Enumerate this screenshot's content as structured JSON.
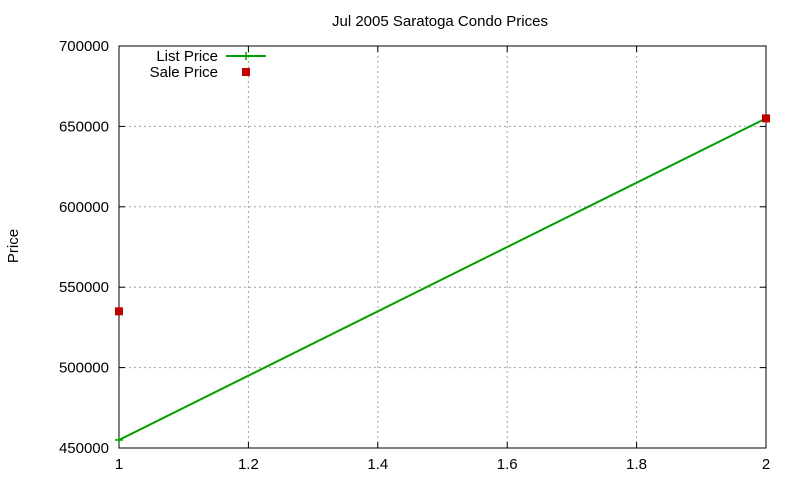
{
  "chart_data": {
    "type": "line",
    "title": "Jul 2005 Saratoga Condo Prices",
    "xlabel": "",
    "ylabel": "Price",
    "xlim": [
      1,
      2
    ],
    "ylim": [
      450000,
      700000
    ],
    "x_ticks": [
      1,
      1.2,
      1.4,
      1.6,
      1.8,
      2
    ],
    "x_tick_labels": [
      "1",
      "1.2",
      "1.4",
      "1.6",
      "1.8",
      "2"
    ],
    "y_ticks": [
      450000,
      500000,
      550000,
      600000,
      650000,
      700000
    ],
    "y_tick_labels": [
      "450000",
      "500000",
      "550000",
      "600000",
      "650000",
      "700000"
    ],
    "grid": true,
    "legend_position": "top-left",
    "series": [
      {
        "name": "List Price",
        "style": "linespoints",
        "color": "#00a000",
        "marker": "plus",
        "x": [
          1,
          2
        ],
        "y": [
          455000,
          655000
        ]
      },
      {
        "name": "Sale Price",
        "style": "points",
        "color": "#c00000",
        "marker": "square",
        "x": [
          1,
          2
        ],
        "y": [
          535000,
          655000
        ]
      }
    ]
  }
}
